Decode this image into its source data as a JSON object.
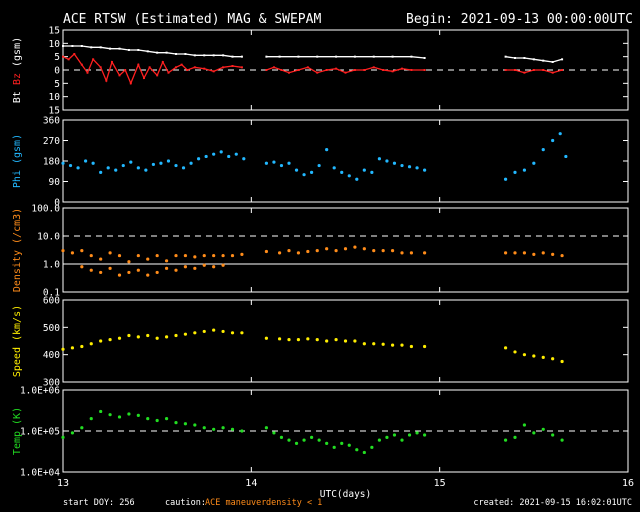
{
  "header": {
    "title": "ACE RTSW (Estimated) MAG & SWEPAM",
    "begin": "Begin: 2021-09-13 00:00:00UTC"
  },
  "footer": {
    "start_doy": "start DOY: 256",
    "caution_label": "caution:",
    "ace_maneuver": "ACE maneuver",
    "density_note": "density < 1",
    "created": "created: 2021-09-15 16:02:01UTC"
  },
  "colors": {
    "bt": "#ffffff",
    "bz": "#ff2020",
    "phi": "#22b8ff",
    "density": "#ff8c1a",
    "speed": "#ffee00",
    "temp": "#22dd22",
    "axis": "#ffffff",
    "background": "#000000"
  },
  "chart_data": [
    {
      "type": "line",
      "panel": "magnetic-field",
      "ylabel_parts": [
        "Bt",
        "Bz",
        "(gsm)"
      ],
      "ylabel_colors": [
        "#ffffff",
        "#ff2020",
        "#ffffff"
      ],
      "ylim": [
        -15,
        15
      ],
      "yticks": [
        -15,
        -10,
        -5,
        0,
        5,
        10,
        15
      ],
      "yticklabels": [
        "15",
        "10",
        "5",
        "0",
        "5",
        "10",
        "15"
      ],
      "reference_lines": [
        {
          "y": 0,
          "style": "dashed"
        }
      ],
      "series": [
        {
          "key": "bt",
          "color": "#ffffff",
          "x": [
            13.0,
            13.05,
            13.1,
            13.15,
            13.2,
            13.25,
            13.3,
            13.35,
            13.4,
            13.45,
            13.5,
            13.55,
            13.6,
            13.65,
            13.7,
            13.75,
            13.8,
            13.85,
            13.9,
            13.95,
            14.08,
            14.15,
            14.25,
            14.35,
            14.45,
            14.55,
            14.65,
            14.75,
            14.85,
            14.92,
            15.35,
            15.4,
            15.45,
            15.5,
            15.55,
            15.6,
            15.65
          ],
          "y": [
            9,
            9,
            9,
            8.5,
            8.5,
            8,
            8,
            7.5,
            7.5,
            7,
            6.5,
            6.5,
            6,
            6,
            5.5,
            5.5,
            5.5,
            5.5,
            5,
            5,
            5,
            5,
            5,
            5,
            5,
            5,
            5,
            5,
            5,
            4.5,
            5,
            4.5,
            4.5,
            4,
            3.5,
            3,
            4
          ]
        },
        {
          "key": "bz",
          "color": "#ff2020",
          "x": [
            13.0,
            13.03,
            13.06,
            13.1,
            13.13,
            13.16,
            13.2,
            13.23,
            13.26,
            13.3,
            13.33,
            13.36,
            13.4,
            13.43,
            13.46,
            13.5,
            13.53,
            13.56,
            13.6,
            13.63,
            13.66,
            13.7,
            13.75,
            13.8,
            13.85,
            13.9,
            13.95,
            14.08,
            14.12,
            14.16,
            14.2,
            14.25,
            14.3,
            14.35,
            14.4,
            14.45,
            14.5,
            14.55,
            14.6,
            14.65,
            14.7,
            14.75,
            14.8,
            14.85,
            14.92,
            15.35,
            15.4,
            15.45,
            15.5,
            15.55,
            15.6,
            15.65
          ],
          "y": [
            5,
            4,
            6,
            2,
            -1,
            4,
            1,
            -4,
            3,
            -2,
            0,
            -5,
            2,
            -3,
            1,
            -2,
            3,
            -1,
            1,
            2,
            0,
            1,
            0.5,
            -0.5,
            1,
            1.5,
            1,
            0,
            1,
            0,
            -1,
            0,
            1,
            -1,
            0,
            0.5,
            -1,
            0,
            0,
            1,
            0,
            -0.5,
            0.5,
            0,
            0,
            0,
            0,
            -1,
            0,
            0,
            -1,
            0
          ]
        }
      ]
    },
    {
      "type": "scatter",
      "panel": "phi",
      "ylabel": "Phi (gsm)",
      "ylim": [
        0,
        360
      ],
      "yticks": [
        0,
        90,
        180,
        270,
        360
      ],
      "series": [
        {
          "key": "phi",
          "color": "#22b8ff",
          "x": [
            13.0,
            13.04,
            13.08,
            13.12,
            13.16,
            13.2,
            13.24,
            13.28,
            13.32,
            13.36,
            13.4,
            13.44,
            13.48,
            13.52,
            13.56,
            13.6,
            13.64,
            13.68,
            13.72,
            13.76,
            13.8,
            13.84,
            13.88,
            13.92,
            13.96,
            14.08,
            14.12,
            14.16,
            14.2,
            14.24,
            14.28,
            14.32,
            14.36,
            14.4,
            14.44,
            14.48,
            14.52,
            14.56,
            14.6,
            14.64,
            14.68,
            14.72,
            14.76,
            14.8,
            14.84,
            14.88,
            14.92,
            15.35,
            15.4,
            15.45,
            15.5,
            15.55,
            15.6,
            15.64,
            15.67
          ],
          "y": [
            170,
            160,
            150,
            180,
            170,
            130,
            150,
            140,
            160,
            175,
            150,
            140,
            165,
            170,
            180,
            160,
            150,
            170,
            190,
            200,
            210,
            220,
            200,
            210,
            190,
            170,
            175,
            160,
            170,
            140,
            120,
            130,
            160,
            230,
            150,
            130,
            115,
            100,
            140,
            130,
            190,
            180,
            170,
            160,
            155,
            150,
            140,
            100,
            130,
            140,
            170,
            230,
            270,
            300,
            200
          ]
        }
      ]
    },
    {
      "type": "scatter",
      "panel": "density",
      "ylabel": "Density (/cm3)",
      "yscale": "log",
      "ylim": [
        0.1,
        100
      ],
      "yticks": [
        0.1,
        1.0,
        10.0,
        100.0
      ],
      "yticklabels": [
        "0.1",
        "1.0",
        "10.0",
        "100.0"
      ],
      "reference_lines": [
        {
          "y": 1.0,
          "style": "solid"
        },
        {
          "y": 10.0,
          "style": "dashed"
        }
      ],
      "series": [
        {
          "key": "density",
          "color": "#ff8c1a",
          "x": [
            13.0,
            13.05,
            13.1,
            13.15,
            13.2,
            13.25,
            13.3,
            13.35,
            13.4,
            13.45,
            13.5,
            13.55,
            13.6,
            13.65,
            13.7,
            13.75,
            13.8,
            13.85,
            13.9,
            13.95,
            14.08,
            14.15,
            14.2,
            14.25,
            14.3,
            14.35,
            14.4,
            14.45,
            14.5,
            14.55,
            14.6,
            14.65,
            14.7,
            14.75,
            14.8,
            14.85,
            14.92,
            15.35,
            15.4,
            15.45,
            15.5,
            15.55,
            15.6,
            15.65
          ],
          "y": [
            3,
            2.5,
            3,
            2,
            1.5,
            2.5,
            2,
            1.2,
            2,
            1.5,
            2,
            1.3,
            2,
            2,
            1.8,
            2,
            2,
            2,
            2,
            2.2,
            2.8,
            2.5,
            3,
            2.5,
            2.8,
            3,
            3.5,
            3,
            3.5,
            4,
            3.5,
            3,
            3,
            3,
            2.5,
            2.5,
            2.5,
            2.5,
            2.5,
            2.5,
            2.2,
            2.5,
            2.2,
            2
          ]
        },
        {
          "key": "density-low",
          "color": "#ff8c1a",
          "x": [
            13.1,
            13.15,
            13.2,
            13.25,
            13.3,
            13.35,
            13.4,
            13.45,
            13.5,
            13.55,
            13.6,
            13.65,
            13.7,
            13.75,
            13.8,
            13.85
          ],
          "y": [
            0.8,
            0.6,
            0.5,
            0.7,
            0.4,
            0.5,
            0.6,
            0.4,
            0.5,
            0.7,
            0.6,
            0.8,
            0.7,
            0.9,
            0.8,
            0.9
          ]
        }
      ]
    },
    {
      "type": "scatter",
      "panel": "speed",
      "ylabel": "Speed (km/s)",
      "ylim": [
        300,
        600
      ],
      "yticks": [
        300,
        400,
        500,
        600
      ],
      "series": [
        {
          "key": "speed",
          "color": "#ffee00",
          "x": [
            13.0,
            13.05,
            13.1,
            13.15,
            13.2,
            13.25,
            13.3,
            13.35,
            13.4,
            13.45,
            13.5,
            13.55,
            13.6,
            13.65,
            13.7,
            13.75,
            13.8,
            13.85,
            13.9,
            13.95,
            14.08,
            14.15,
            14.2,
            14.25,
            14.3,
            14.35,
            14.4,
            14.45,
            14.5,
            14.55,
            14.6,
            14.65,
            14.7,
            14.75,
            14.8,
            14.85,
            14.92,
            15.35,
            15.4,
            15.45,
            15.5,
            15.55,
            15.6,
            15.65
          ],
          "y": [
            420,
            425,
            430,
            440,
            450,
            455,
            460,
            470,
            465,
            470,
            460,
            465,
            470,
            475,
            480,
            485,
            490,
            485,
            480,
            480,
            460,
            458,
            455,
            455,
            458,
            455,
            450,
            455,
            450,
            450,
            440,
            440,
            438,
            435,
            435,
            430,
            430,
            425,
            410,
            400,
            395,
            390,
            385,
            375
          ]
        }
      ]
    },
    {
      "type": "scatter",
      "panel": "temperature",
      "ylabel": "Temp (K)",
      "yscale": "log",
      "ylim": [
        10000,
        1000000
      ],
      "yticks": [
        10000,
        100000,
        1000000
      ],
      "yticklabels": [
        "1.0E+04",
        "1.0E+05",
        "1.0E+06"
      ],
      "reference_lines": [
        {
          "y": 100000,
          "style": "dashed"
        }
      ],
      "series": [
        {
          "key": "temp",
          "color": "#22dd22",
          "x": [
            13.0,
            13.05,
            13.1,
            13.15,
            13.2,
            13.25,
            13.3,
            13.35,
            13.4,
            13.45,
            13.5,
            13.55,
            13.6,
            13.65,
            13.7,
            13.75,
            13.8,
            13.85,
            13.9,
            13.95,
            14.08,
            14.12,
            14.16,
            14.2,
            14.24,
            14.28,
            14.32,
            14.36,
            14.4,
            14.44,
            14.48,
            14.52,
            14.56,
            14.6,
            14.64,
            14.68,
            14.72,
            14.76,
            14.8,
            14.84,
            14.88,
            14.92,
            15.35,
            15.4,
            15.45,
            15.5,
            15.55,
            15.6,
            15.65
          ],
          "y": [
            70000,
            90000,
            120000,
            200000,
            300000,
            250000,
            220000,
            260000,
            240000,
            200000,
            180000,
            200000,
            160000,
            150000,
            140000,
            120000,
            110000,
            120000,
            110000,
            100000,
            120000,
            90000,
            70000,
            60000,
            50000,
            60000,
            70000,
            60000,
            50000,
            40000,
            50000,
            45000,
            35000,
            30000,
            40000,
            60000,
            70000,
            80000,
            60000,
            80000,
            90000,
            80000,
            60000,
            70000,
            140000,
            90000,
            110000,
            80000,
            60000
          ]
        }
      ]
    }
  ],
  "xaxis": {
    "label": "UTC(days)",
    "xlim": [
      13,
      16
    ],
    "ticks": [
      13,
      14,
      15,
      16
    ],
    "ticklabels": [
      "13",
      "14",
      "15",
      "16"
    ]
  }
}
